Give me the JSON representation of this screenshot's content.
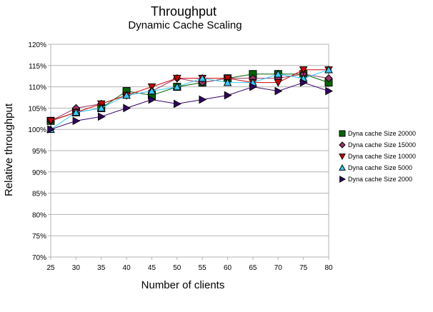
{
  "chart_data": {
    "type": "line",
    "title": "Throughput",
    "subtitle": "Dynamic Cache Scaling",
    "xlabel": "Number of clients",
    "ylabel": "Relative throughput",
    "x": [
      25,
      30,
      35,
      40,
      45,
      50,
      55,
      60,
      65,
      70,
      75,
      80
    ],
    "x_tick_labels": [
      "25",
      "30",
      "35",
      "40",
      "45",
      "50",
      "55",
      "60",
      "65",
      "70",
      "75",
      "80"
    ],
    "ylim": [
      70,
      120
    ],
    "y_tick_values": [
      70,
      75,
      80,
      85,
      90,
      95,
      100,
      105,
      110,
      115,
      120
    ],
    "y_tick_labels": [
      "70%",
      "75%",
      "80%",
      "85%",
      "90%",
      "95%",
      "100%",
      "105%",
      "110%",
      "115%",
      "120%"
    ],
    "grid": "horizontal",
    "legend_position": "right",
    "series": [
      {
        "name": "Dyna cache Size 20000",
        "color": "#006600",
        "marker": "square",
        "values": [
          102,
          104,
          105,
          109,
          108,
          110,
          111,
          112,
          113,
          113,
          113,
          111
        ]
      },
      {
        "name": "Dyna cache Size 15000",
        "color": "#993366",
        "marker": "diamond",
        "values": [
          102,
          105,
          106,
          108,
          109,
          112,
          111,
          112,
          112,
          112,
          113,
          112
        ]
      },
      {
        "name": "Dyna cache Size 10000",
        "color": "#cc0000",
        "marker": "triangle-down",
        "values": [
          102,
          104,
          106,
          108,
          110,
          112,
          112,
          112,
          111,
          111,
          114,
          114
        ]
      },
      {
        "name": "Dyna cache Size 5000",
        "color": "#33ccff",
        "marker": "triangle-up",
        "values": [
          100,
          104,
          105,
          108,
          109,
          110,
          112,
          111,
          111,
          113,
          112,
          114
        ]
      },
      {
        "name": "Dyna cache Size 2000",
        "color": "#330066",
        "marker": "triangle-right",
        "values": [
          100,
          102,
          103,
          105,
          107,
          106,
          107,
          108,
          110,
          109,
          111,
          109
        ]
      }
    ]
  }
}
